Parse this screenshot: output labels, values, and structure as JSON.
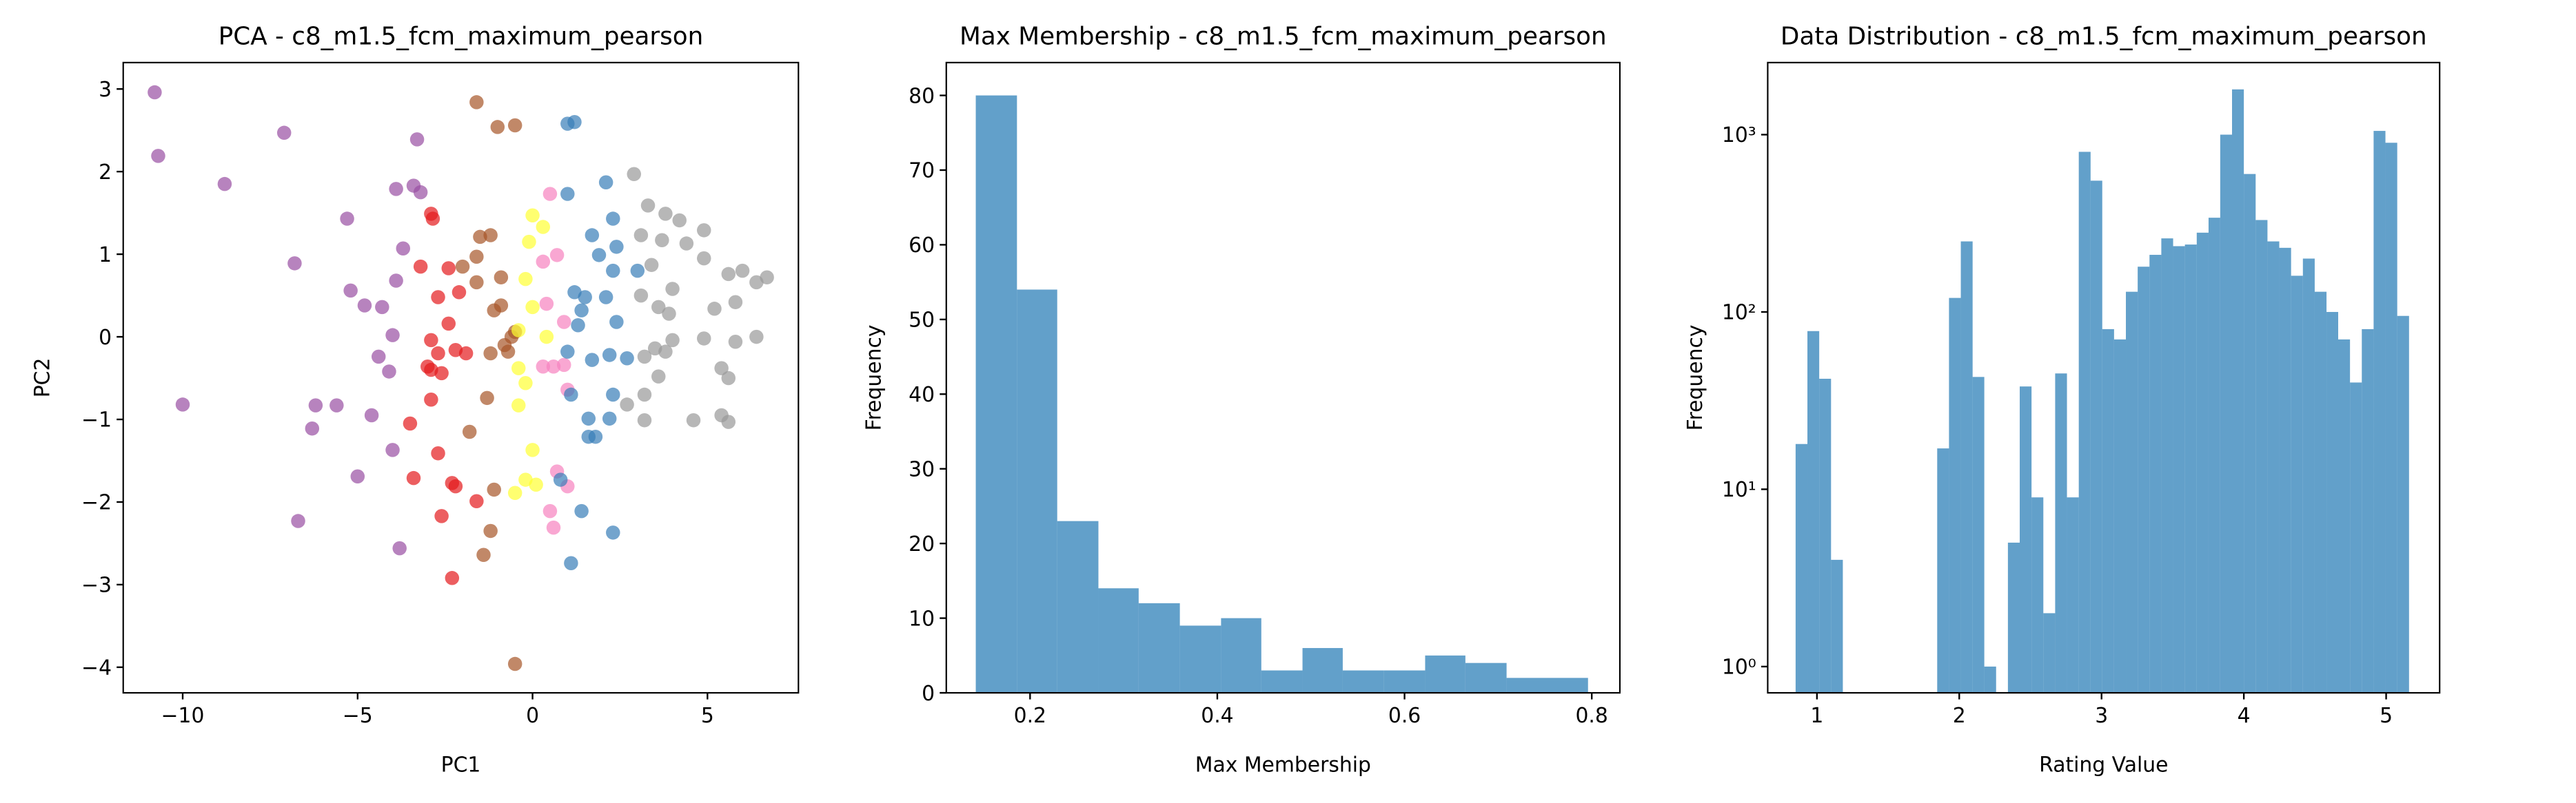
{
  "chart_data": [
    {
      "type": "scatter",
      "title": "PCA - c8_m1.5_fcm_maximum_pearson",
      "xlabel": "PC1",
      "ylabel": "PC2",
      "alpha": 0.7,
      "xlim": [
        -11.7,
        7.6
      ],
      "ylim": [
        -4.31,
        3.32
      ],
      "xticks": [
        {
          "value": -10,
          "label": "−10"
        },
        {
          "value": -5,
          "label": "−5"
        },
        0,
        5
      ],
      "yticks": [
        3,
        2,
        1,
        0,
        {
          "value": -1,
          "label": "−1"
        },
        {
          "value": -2,
          "label": "−2"
        },
        {
          "value": -3,
          "label": "−3"
        },
        {
          "value": -4,
          "label": "−4"
        }
      ],
      "series": [
        {
          "color": "#984ea3",
          "x": [
            -10.8,
            -10.7,
            -8.8,
            -7.1,
            -6.8,
            -10.0,
            -5.3,
            -5.2,
            -4.8,
            -4.3,
            -3.9,
            -6.2,
            -5.6,
            -6.3,
            -6.7,
            -5.0,
            -4.6,
            -4.0,
            -3.8,
            -3.9,
            -3.4,
            -3.3,
            -3.7,
            -4.4,
            -4.0,
            -4.1,
            -3.2
          ],
          "y": [
            2.96,
            2.19,
            1.85,
            2.47,
            0.89,
            -0.82,
            1.43,
            0.56,
            0.38,
            0.36,
            0.68,
            -0.83,
            -0.83,
            -1.11,
            -2.23,
            -1.69,
            -0.95,
            -1.37,
            -2.56,
            1.79,
            1.83,
            2.39,
            1.07,
            -0.24,
            0.02,
            -0.42,
            1.75
          ]
        },
        {
          "color": "#e41a1c",
          "x": [
            -2.9,
            -2.85,
            -3.2,
            -2.4,
            -2.7,
            -2.1,
            -2.4,
            -2.9,
            -2.7,
            -2.2,
            -1.9,
            -2.9,
            -2.6,
            -2.9,
            -3.5,
            -2.7,
            -3.4,
            -2.3,
            -2.2,
            -2.6,
            -1.6,
            -2.3,
            -3.0
          ],
          "y": [
            1.49,
            1.43,
            0.85,
            0.83,
            0.48,
            0.54,
            0.16,
            -0.04,
            -0.2,
            -0.16,
            -0.2,
            -0.4,
            -0.44,
            -0.76,
            -1.05,
            -1.41,
            -1.71,
            -1.77,
            -1.81,
            -2.17,
            -1.99,
            -2.92,
            -0.36
          ]
        },
        {
          "color": "#a65628",
          "x": [
            -1.6,
            -1.0,
            -0.5,
            -1.5,
            -1.2,
            -1.6,
            -1.6,
            -0.9,
            -0.9,
            -1.1,
            -0.5,
            -0.6,
            -1.2,
            -0.7,
            -1.3,
            -1.8,
            -1.1,
            -1.2,
            -1.4,
            -0.5,
            -2.0,
            -0.8
          ],
          "y": [
            2.84,
            2.54,
            2.56,
            1.21,
            1.23,
            0.97,
            0.66,
            0.72,
            0.38,
            0.32,
            0.06,
            0.0,
            -0.2,
            -0.18,
            -0.74,
            -1.15,
            -1.85,
            -2.35,
            -2.64,
            -3.96,
            0.85,
            -0.1
          ]
        },
        {
          "color": "#ffff33",
          "x": [
            0.0,
            0.3,
            -0.1,
            0.0,
            -0.2,
            -0.4,
            -0.4,
            -0.2,
            -0.4,
            0.0,
            -0.2,
            -0.5,
            0.1,
            0.4
          ],
          "y": [
            1.47,
            1.33,
            1.15,
            0.36,
            0.7,
            0.08,
            -0.38,
            -0.56,
            -0.83,
            -1.37,
            -1.73,
            -1.89,
            -1.79,
            0.0
          ]
        },
        {
          "color": "#f781bf",
          "x": [
            0.5,
            0.7,
            0.3,
            0.4,
            0.3,
            0.6,
            0.9,
            0.9,
            0.5,
            0.6,
            0.7,
            1.0,
            1.0
          ],
          "y": [
            1.73,
            0.99,
            0.91,
            0.4,
            -0.36,
            -0.36,
            -0.34,
            0.18,
            -2.11,
            -2.31,
            -1.63,
            -1.81,
            -0.64
          ]
        },
        {
          "color": "#377eb8",
          "x": [
            1.0,
            1.2,
            1.0,
            2.1,
            2.3,
            1.7,
            1.9,
            2.3,
            1.2,
            1.5,
            1.4,
            2.1,
            2.4,
            1.3,
            1.0,
            1.7,
            2.2,
            2.7,
            2.3,
            1.1,
            1.6,
            2.2,
            1.6,
            1.8,
            0.8,
            1.4,
            2.3,
            1.1,
            3.0,
            2.4
          ],
          "y": [
            2.58,
            2.6,
            1.73,
            1.87,
            1.43,
            1.23,
            0.99,
            0.8,
            0.54,
            0.48,
            0.32,
            0.48,
            0.18,
            0.14,
            -0.18,
            -0.28,
            -0.22,
            -0.26,
            -0.7,
            -0.7,
            -0.99,
            -0.99,
            -1.21,
            -1.21,
            -1.73,
            -2.11,
            -2.37,
            -2.74,
            0.8,
            1.09
          ]
        },
        {
          "color": "#999999",
          "x": [
            2.9,
            3.3,
            3.8,
            4.2,
            4.9,
            3.1,
            3.7,
            4.4,
            4.9,
            5.6,
            6.4,
            6.7,
            6.0,
            3.4,
            4.0,
            3.6,
            3.1,
            5.2,
            5.8,
            3.9,
            4.0,
            4.9,
            5.8,
            6.4,
            3.5,
            3.2,
            3.8,
            3.6,
            3.2,
            5.4,
            5.6,
            4.6,
            5.4,
            5.6,
            3.2,
            2.7
          ],
          "y": [
            1.97,
            1.59,
            1.49,
            1.41,
            1.29,
            1.23,
            1.17,
            1.13,
            0.95,
            0.76,
            0.66,
            0.72,
            0.8,
            0.87,
            0.58,
            0.36,
            0.5,
            0.34,
            0.42,
            0.28,
            -0.04,
            -0.02,
            -0.06,
            0.0,
            -0.14,
            -0.24,
            -0.18,
            -0.48,
            -0.7,
            -0.38,
            -0.5,
            -1.01,
            -0.95,
            -1.03,
            -1.01,
            -0.82
          ]
        }
      ]
    },
    {
      "type": "histogram",
      "title": "Max Membership - c8_m1.5_fcm_maximum_pearson",
      "xlabel": "Max Membership",
      "ylabel": "Frequency",
      "color": "#1f77b4",
      "alpha": 0.7,
      "xlim": [
        0.1105,
        0.83
      ],
      "ylim": [
        0,
        84.4
      ],
      "xticks": [
        0.2,
        0.4,
        0.6,
        0.8
      ],
      "yticks": [
        0,
        10,
        20,
        30,
        40,
        50,
        60,
        70,
        80
      ],
      "bins": [
        0.142,
        0.186,
        0.229,
        0.273,
        0.316,
        0.36,
        0.404,
        0.447,
        0.491,
        0.534,
        0.578,
        0.622,
        0.665,
        0.709,
        0.752,
        0.796
      ],
      "values": [
        80,
        54,
        23,
        14,
        12,
        9,
        10,
        3,
        6,
        3,
        3,
        5,
        4,
        2,
        2
      ]
    },
    {
      "type": "histogram",
      "title": "Data Distribution - c8_m1.5_fcm_maximum_pearson",
      "xlabel": "Rating Value",
      "ylabel": "Frequency",
      "color": "#1f77b4",
      "alpha": 0.7,
      "ylog": true,
      "xlim": [
        0.654,
        5.376
      ],
      "ylim": [
        0.711,
        2550
      ],
      "xticks": [
        1,
        2,
        3,
        4,
        5
      ],
      "yticks": [
        {
          "value": 1,
          "label": "10⁰"
        },
        {
          "value": 10,
          "label": "10¹"
        },
        {
          "value": 100,
          "label": "10²"
        },
        {
          "value": 1000,
          "label": "10³"
        }
      ],
      "bins": [
        0.85,
        0.933,
        1.016,
        1.099,
        1.182,
        1.265,
        1.347,
        1.43,
        1.513,
        1.596,
        1.679,
        1.762,
        1.845,
        1.928,
        2.011,
        2.094,
        2.176,
        2.259,
        2.342,
        2.425,
        2.508,
        2.591,
        2.674,
        2.757,
        2.84,
        2.923,
        3.005,
        3.088,
        3.171,
        3.254,
        3.337,
        3.42,
        3.503,
        3.586,
        3.669,
        3.752,
        3.834,
        3.917,
        4.0,
        4.083,
        4.166,
        4.249,
        4.332,
        4.415,
        4.498,
        4.581,
        4.663,
        4.746,
        4.829,
        4.912,
        4.995,
        5.078,
        5.161
      ],
      "values": [
        18,
        78,
        42,
        4,
        0,
        0,
        0,
        0,
        0,
        0,
        0,
        0,
        17,
        120,
        250,
        43,
        1,
        0,
        5,
        38,
        9,
        2,
        45,
        9,
        800,
        550,
        80,
        70,
        130,
        180,
        210,
        260,
        235,
        240,
        280,
        340,
        1000,
        1800,
        600,
        330,
        250,
        230,
        160,
        200,
        130,
        100,
        70,
        40,
        80,
        1050,
        900,
        95
      ]
    }
  ]
}
